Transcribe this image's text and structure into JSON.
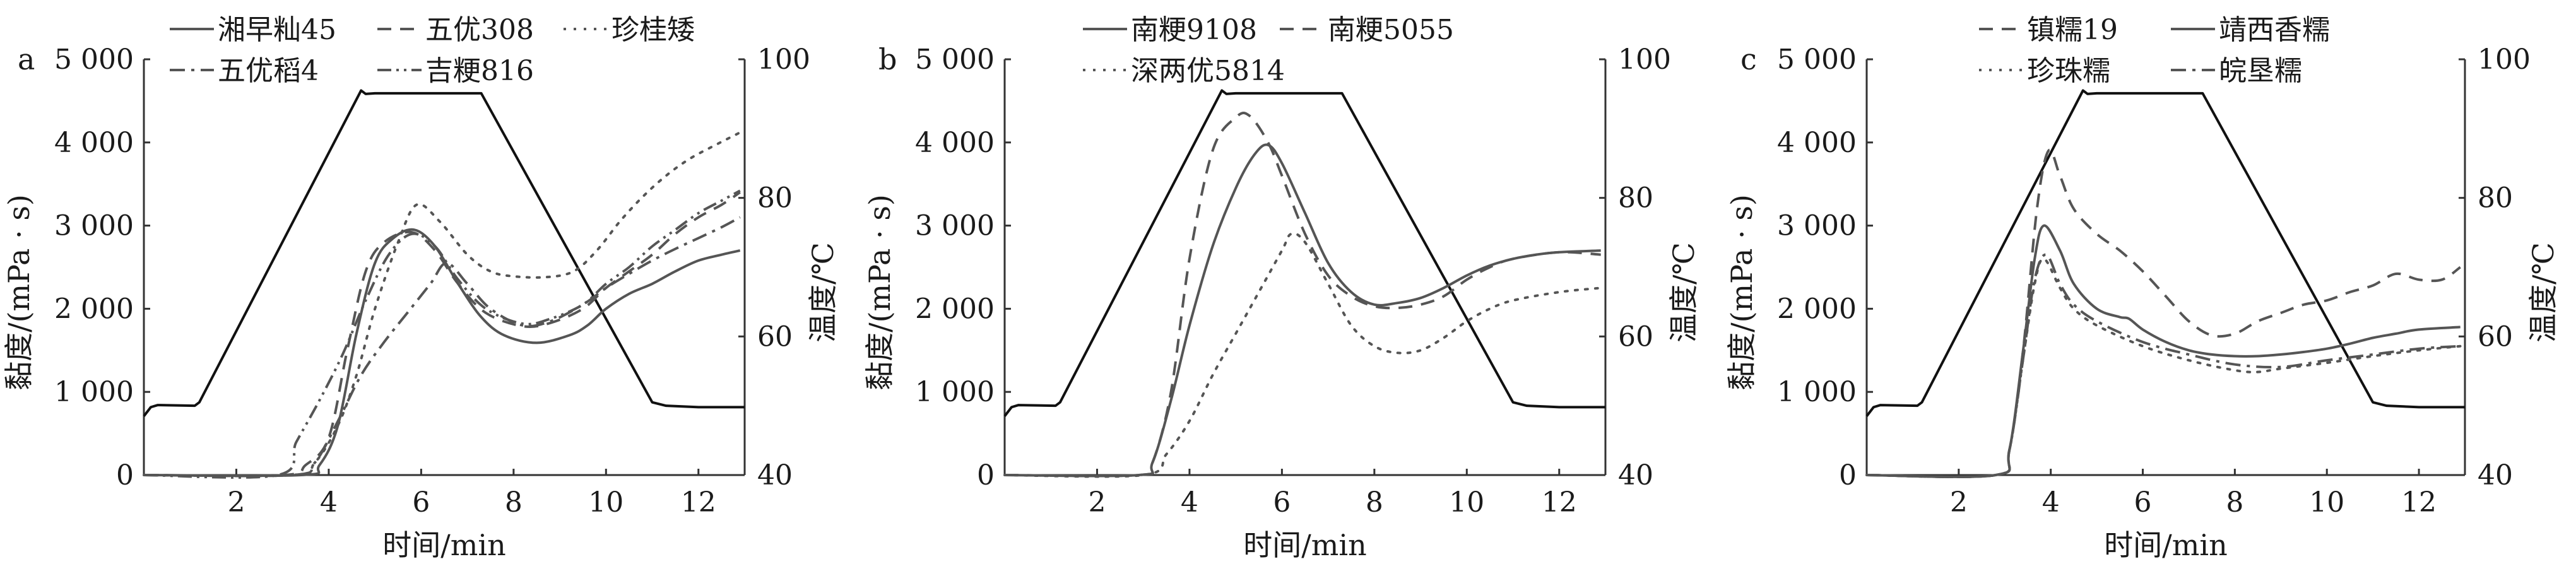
{
  "chart_data": [
    {
      "type": "line",
      "panel_label": "a",
      "xlabel": "时间/min",
      "ylabel": "黏度/(mPa · s)",
      "y2label": "温度/℃",
      "xlim": [
        0,
        13
      ],
      "ylim": [
        0,
        5000
      ],
      "y2lim": [
        40,
        100
      ],
      "xticks": [
        "2",
        "4",
        "6",
        "8",
        "10",
        "12"
      ],
      "yticks": [
        "0",
        "1 000",
        "2 000",
        "3 000",
        "4 000",
        "5 000"
      ],
      "y2ticks": [
        "40",
        "60",
        "80",
        "100"
      ],
      "temperature": {
        "x": [
          0,
          0.15,
          0.3,
          1.1,
          1.2,
          4.7,
          4.8,
          5.0,
          7.3,
          11.0,
          11.3,
          12.0,
          13.0
        ],
        "y": [
          48.5,
          49.8,
          50.1,
          50.0,
          50.5,
          95.5,
          95.0,
          95.1,
          95.1,
          50.5,
          50.0,
          49.8,
          49.8
        ]
      },
      "series": [
        {
          "name": "湘早籼45",
          "style": "solid",
          "x": [
            0,
            3.4,
            3.8,
            4.2,
            4.6,
            5.0,
            5.4,
            5.85,
            6.3,
            6.8,
            7.3,
            7.8,
            8.5,
            9.2,
            9.6,
            10.0,
            10.5,
            11.0,
            11.5,
            12.0,
            12.5,
            12.9
          ],
          "y": [
            0,
            0,
            120,
            600,
            1700,
            2550,
            2850,
            2950,
            2750,
            2300,
            1900,
            1680,
            1590,
            1680,
            1800,
            2000,
            2180,
            2300,
            2450,
            2580,
            2650,
            2700
          ]
        },
        {
          "name": "五优308",
          "style": "dashed",
          "x": [
            0,
            3.0,
            3.5,
            4.0,
            4.4,
            4.8,
            5.2,
            5.8,
            6.3,
            6.8,
            7.4,
            8.2,
            8.8,
            9.5,
            10.0,
            10.5,
            11.0,
            11.5,
            12.0,
            12.5,
            12.9
          ],
          "y": [
            0,
            0,
            120,
            450,
            1500,
            2450,
            2800,
            2920,
            2700,
            2300,
            1950,
            1790,
            1830,
            2000,
            2250,
            2450,
            2650,
            2900,
            3100,
            3250,
            3400
          ]
        },
        {
          "name": "珍桂矮",
          "style": "dotted",
          "x": [
            0,
            3.2,
            3.7,
            4.2,
            4.6,
            5.0,
            5.5,
            5.9,
            6.4,
            7.0,
            7.5,
            8.0,
            8.7,
            9.3,
            9.8,
            10.3,
            10.8,
            11.3,
            11.8,
            12.3,
            12.9
          ],
          "y": [
            0,
            0,
            150,
            600,
            1200,
            2000,
            2800,
            3250,
            3050,
            2650,
            2450,
            2390,
            2380,
            2450,
            2700,
            3050,
            3350,
            3600,
            3800,
            3950,
            4120
          ]
        },
        {
          "name": "五优稻4",
          "style": "dashdot",
          "x": [
            0,
            3.2,
            3.7,
            4.2,
            4.7,
            5.2,
            5.7,
            6.2,
            6.55,
            7.0,
            7.5,
            8.2,
            8.8,
            9.5,
            10.0,
            10.5,
            11.0,
            11.5,
            12.0,
            12.5,
            12.9
          ],
          "y": [
            0,
            0,
            150,
            650,
            1200,
            1600,
            1950,
            2300,
            2550,
            2300,
            2000,
            1800,
            1850,
            2050,
            2250,
            2420,
            2580,
            2720,
            2850,
            2980,
            3100
          ]
        },
        {
          "name": "吉粳816",
          "style": "dashdotdot",
          "x": [
            0,
            2.9,
            3.3,
            3.8,
            4.3,
            4.8,
            5.3,
            5.8,
            6.3,
            6.8,
            7.4,
            8.2,
            8.8,
            9.5,
            10.0,
            10.5,
            11.0,
            11.5,
            12.0,
            12.5,
            12.9
          ],
          "y": [
            0,
            0,
            400,
            900,
            1450,
            2100,
            2650,
            2900,
            2750,
            2350,
            2000,
            1820,
            1880,
            2050,
            2300,
            2500,
            2750,
            2950,
            3150,
            3300,
            3420
          ]
        }
      ]
    },
    {
      "type": "line",
      "panel_label": "b",
      "xlabel": "时间/min",
      "ylabel": "黏度/(mPa · s)",
      "y2label": "温度/℃",
      "xlim": [
        0,
        13
      ],
      "ylim": [
        0,
        5000
      ],
      "y2lim": [
        40,
        100
      ],
      "xticks": [
        "2",
        "4",
        "6",
        "8",
        "10",
        "12"
      ],
      "yticks": [
        "0",
        "1 000",
        "2 000",
        "3 000",
        "4 000",
        "5 000"
      ],
      "y2ticks": [
        "40",
        "60",
        "80",
        "100"
      ],
      "temperature": {
        "x": [
          0,
          0.15,
          0.3,
          1.1,
          1.2,
          4.7,
          4.8,
          5.0,
          7.3,
          11.0,
          11.3,
          12.0,
          13.0
        ],
        "y": [
          48.5,
          49.8,
          50.1,
          50.0,
          50.5,
          95.5,
          95.0,
          95.1,
          95.1,
          50.5,
          50.0,
          49.8,
          49.8
        ]
      },
      "series": [
        {
          "name": "南粳9108",
          "style": "solid",
          "x": [
            0,
            2.9,
            3.2,
            3.6,
            4.0,
            4.5,
            5.0,
            5.4,
            5.7,
            6.0,
            6.5,
            7.0,
            7.5,
            8.0,
            8.5,
            9.0,
            9.5,
            10.0,
            10.5,
            11.0,
            11.5,
            12.0,
            12.9
          ],
          "y": [
            0,
            0,
            150,
            900,
            1800,
            2750,
            3450,
            3850,
            3970,
            3750,
            3150,
            2550,
            2200,
            2050,
            2070,
            2130,
            2250,
            2400,
            2520,
            2600,
            2650,
            2680,
            2700
          ]
        },
        {
          "name": "南粳5055",
          "style": "dashed",
          "x": [
            0,
            2.9,
            3.2,
            3.6,
            4.0,
            4.5,
            5.0,
            5.3,
            5.7,
            6.0,
            6.5,
            7.0,
            7.5,
            8.0,
            8.5,
            9.0,
            9.5,
            10.0,
            10.5,
            11.0,
            12.0,
            12.9
          ],
          "y": [
            0,
            0,
            150,
            1000,
            2600,
            3900,
            4300,
            4320,
            4000,
            3600,
            2900,
            2400,
            2150,
            2030,
            2010,
            2050,
            2150,
            2350,
            2500,
            2600,
            2680,
            2650
          ]
        },
        {
          "name": "深两优5814",
          "style": "dotted",
          "x": [
            0,
            3.0,
            3.5,
            4.0,
            4.5,
            5.0,
            5.5,
            6.0,
            6.2,
            6.5,
            7.0,
            7.5,
            8.0,
            8.5,
            9.0,
            9.5,
            10.0,
            10.5,
            11.0,
            12.0,
            12.9
          ],
          "y": [
            0,
            0,
            250,
            650,
            1200,
            1700,
            2200,
            2700,
            2900,
            2800,
            2300,
            1800,
            1550,
            1470,
            1500,
            1650,
            1850,
            2000,
            2100,
            2200,
            2250
          ]
        }
      ]
    },
    {
      "type": "line",
      "panel_label": "c",
      "xlabel": "时间/min",
      "ylabel": "黏度/(mPa · s)",
      "y2label": "温度/℃",
      "xlim": [
        0,
        13
      ],
      "ylim": [
        0,
        5000
      ],
      "y2lim": [
        40,
        100
      ],
      "xticks": [
        "2",
        "4",
        "6",
        "8",
        "10",
        "12"
      ],
      "yticks": [
        "0",
        "1 000",
        "2 000",
        "3 000",
        "4 000",
        "5 000"
      ],
      "y2ticks": [
        "40",
        "60",
        "80",
        "100"
      ],
      "temperature": {
        "x": [
          0,
          0.15,
          0.3,
          1.1,
          1.2,
          4.7,
          4.8,
          5.0,
          7.3,
          11.0,
          11.3,
          12.0,
          13.0
        ],
        "y": [
          48.5,
          49.8,
          50.1,
          50.0,
          50.5,
          95.5,
          95.0,
          95.1,
          95.1,
          50.5,
          50.0,
          49.8,
          49.8
        ]
      },
      "series": [
        {
          "name": "镇糯19",
          "style": "dashed",
          "x": [
            0,
            2.8,
            3.1,
            3.4,
            3.7,
            3.95,
            4.2,
            4.5,
            5.0,
            5.5,
            6.0,
            6.5,
            7.0,
            7.5,
            8.0,
            8.5,
            9.0,
            9.5,
            10.0,
            10.5,
            11.0,
            11.5,
            12.0,
            12.5,
            12.9
          ],
          "y": [
            0,
            0,
            300,
            1500,
            3200,
            3900,
            3600,
            3200,
            2900,
            2700,
            2450,
            2150,
            1850,
            1680,
            1700,
            1850,
            1950,
            2050,
            2100,
            2200,
            2280,
            2420,
            2350,
            2350,
            2500
          ]
        },
        {
          "name": "靖西香糯",
          "style": "solid",
          "x": [
            0,
            2.8,
            3.1,
            3.4,
            3.65,
            3.85,
            4.2,
            4.5,
            5.0,
            5.5,
            5.7,
            6.0,
            6.5,
            7.0,
            7.5,
            8.0,
            8.5,
            9.0,
            9.5,
            10.0,
            10.5,
            11.0,
            11.5,
            12.0,
            12.9
          ],
          "y": [
            0,
            0,
            300,
            1500,
            2600,
            3000,
            2700,
            2300,
            2000,
            1900,
            1880,
            1750,
            1600,
            1500,
            1450,
            1430,
            1430,
            1450,
            1480,
            1520,
            1580,
            1650,
            1700,
            1750,
            1780
          ]
        },
        {
          "name": "珍珠糯",
          "style": "dotted",
          "x": [
            0,
            2.8,
            3.1,
            3.4,
            3.65,
            3.85,
            4.2,
            4.5,
            5.0,
            6.0,
            7.0,
            8.0,
            8.5,
            9.0,
            10.0,
            11.0,
            12.0,
            12.9
          ],
          "y": [
            0,
            0,
            300,
            1400,
            2300,
            2600,
            2250,
            2000,
            1800,
            1550,
            1380,
            1260,
            1240,
            1280,
            1350,
            1430,
            1500,
            1550
          ]
        },
        {
          "name": "皖垦糯",
          "style": "dashdot",
          "x": [
            0,
            2.8,
            3.1,
            3.4,
            3.65,
            3.9,
            4.2,
            4.5,
            5.0,
            6.0,
            7.0,
            8.0,
            9.0,
            10.0,
            11.0,
            12.0,
            12.9
          ],
          "y": [
            0,
            0,
            300,
            1400,
            2350,
            2650,
            2300,
            2050,
            1850,
            1600,
            1450,
            1330,
            1300,
            1380,
            1450,
            1520,
            1550
          ]
        }
      ]
    }
  ],
  "colors": {
    "temperature": "#111111",
    "series": "#555555",
    "axis": "#333333"
  }
}
